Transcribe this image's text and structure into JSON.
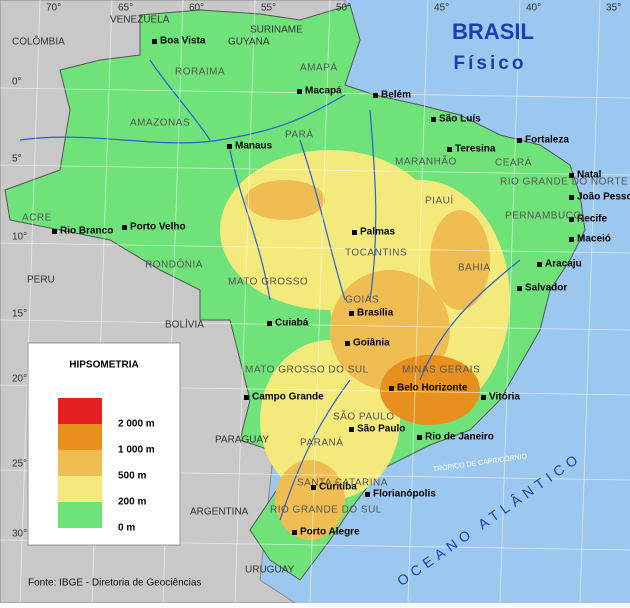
{
  "header": {
    "title": "BRASIL",
    "subtitle": "Físico"
  },
  "legend": {
    "title": "HIPSOMETRIA",
    "items": [
      {
        "label": "2 000 m",
        "color": "#e31f1f"
      },
      {
        "label": "1 000 m",
        "color": "#e8901e"
      },
      {
        "label": "500 m",
        "color": "#f0bd52"
      },
      {
        "label": "200 m",
        "color": "#f4ea7c"
      },
      {
        "label": "0 m",
        "color": "#6fe37a"
      }
    ]
  },
  "source": "Fonte: IBGE - Diretoria de Geociências",
  "cities": [
    "Boa Vista",
    "Macapá",
    "Belém",
    "São Luís",
    "Fortaleza",
    "Natal",
    "João Pessoa",
    "Recife",
    "Maceió",
    "Aracaju",
    "Salvador",
    "Teresina",
    "Manaus",
    "Rio Branco",
    "Porto Velho",
    "Palmas",
    "Cuiabá",
    "Brasília",
    "Goiânia",
    "Campo Grande",
    "Belo Horizonte",
    "Vitória",
    "São Paulo",
    "Rio de Janeiro",
    "Curitiba",
    "Florianópolis",
    "Porto Alegre"
  ],
  "states": [
    "RORAIMA",
    "AMAPÁ",
    "AMAZONAS",
    "PARÁ",
    "MARANHÃO",
    "CEARÁ",
    "PIAUÍ",
    "ACRE",
    "RONDÔNIA",
    "TOCANTINS",
    "BAHIA",
    "MATO GROSSO",
    "GOIÁS",
    "MINAS GERAIS",
    "MATO GROSSO DO SUL",
    "SÃO PAULO",
    "PARANÁ",
    "SANTA CATARINA",
    "RIO GRANDE DO SUL",
    "RIO GRANDE DO NORTE",
    "PERNAMBUCO"
  ],
  "countries": [
    "VENEZUELA",
    "COLÔMBIA",
    "GUYANA",
    "SURINAME",
    "PERU",
    "BOLÍVIA",
    "PARAGUAY",
    "ARGENTINA",
    "URUGUAY"
  ],
  "ocean": {
    "name": "OCEANO ATLÂNTICO",
    "tropic": "TRÓPICO DE CAPRICÓRNIO"
  },
  "latitudes": [
    "0°",
    "5°",
    "10°",
    "15°",
    "20°",
    "25°",
    "30°"
  ],
  "longitudes": [
    "70°",
    "65°",
    "60°",
    "55°",
    "50°",
    "45°",
    "40°",
    "35°"
  ]
}
